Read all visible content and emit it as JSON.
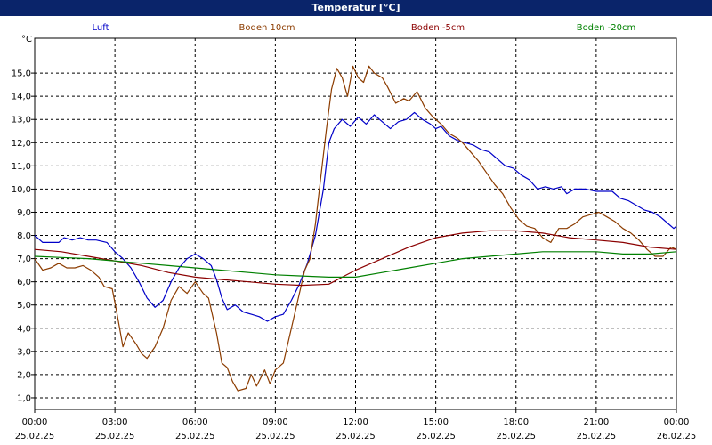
{
  "chart_data": {
    "type": "line",
    "title": "Temperatur [°C]",
    "unit": "°C",
    "ylim": [
      0.5,
      16.5
    ],
    "y_ticks": [
      "1,0",
      "2,0",
      "3,0",
      "4,0",
      "5,0",
      "6,0",
      "7,0",
      "8,0",
      "9,0",
      "10,0",
      "11,0",
      "12,0",
      "13,0",
      "14,0",
      "15,0"
    ],
    "xlim": [
      0,
      24
    ],
    "x_ticks": [
      {
        "time": "00:00",
        "date": "25.02.25"
      },
      {
        "time": "03:00",
        "date": "25.02.25"
      },
      {
        "time": "06:00",
        "date": "25.02.25"
      },
      {
        "time": "09:00",
        "date": "25.02.25"
      },
      {
        "time": "12:00",
        "date": "25.02.25"
      },
      {
        "time": "15:00",
        "date": "25.02.25"
      },
      {
        "time": "18:00",
        "date": "25.02.25"
      },
      {
        "time": "21:00",
        "date": "25.02.25"
      },
      {
        "time": "00:00",
        "date": "26.02.25"
      }
    ],
    "grid": true,
    "legend_position": "top",
    "series": [
      {
        "name": "Luft",
        "color": "#0000c8",
        "points": [
          [
            0,
            8.0
          ],
          [
            0.3,
            7.7
          ],
          [
            0.6,
            7.7
          ],
          [
            0.9,
            7.7
          ],
          [
            1.1,
            7.9
          ],
          [
            1.4,
            7.8
          ],
          [
            1.7,
            7.9
          ],
          [
            2.0,
            7.8
          ],
          [
            2.3,
            7.8
          ],
          [
            2.7,
            7.7
          ],
          [
            3.0,
            7.3
          ],
          [
            3.3,
            7.0
          ],
          [
            3.6,
            6.6
          ],
          [
            3.9,
            6.0
          ],
          [
            4.2,
            5.3
          ],
          [
            4.5,
            4.9
          ],
          [
            4.8,
            5.2
          ],
          [
            5.1,
            6.0
          ],
          [
            5.4,
            6.6
          ],
          [
            5.7,
            7.0
          ],
          [
            6.0,
            7.2
          ],
          [
            6.3,
            7.0
          ],
          [
            6.6,
            6.7
          ],
          [
            6.8,
            6.1
          ],
          [
            7.0,
            5.3
          ],
          [
            7.2,
            4.8
          ],
          [
            7.5,
            5.0
          ],
          [
            7.8,
            4.7
          ],
          [
            8.1,
            4.6
          ],
          [
            8.4,
            4.5
          ],
          [
            8.7,
            4.3
          ],
          [
            9.0,
            4.5
          ],
          [
            9.3,
            4.6
          ],
          [
            9.6,
            5.2
          ],
          [
            9.9,
            5.9
          ],
          [
            10.2,
            6.8
          ],
          [
            10.5,
            8.0
          ],
          [
            10.8,
            10.0
          ],
          [
            11.0,
            12.0
          ],
          [
            11.2,
            12.6
          ],
          [
            11.5,
            13.0
          ],
          [
            11.8,
            12.7
          ],
          [
            12.1,
            13.1
          ],
          [
            12.4,
            12.8
          ],
          [
            12.7,
            13.2
          ],
          [
            13.0,
            12.9
          ],
          [
            13.3,
            12.6
          ],
          [
            13.6,
            12.9
          ],
          [
            13.9,
            13.0
          ],
          [
            14.2,
            13.3
          ],
          [
            14.5,
            13.0
          ],
          [
            14.8,
            12.8
          ],
          [
            15.0,
            12.6
          ],
          [
            15.2,
            12.7
          ],
          [
            15.5,
            12.3
          ],
          [
            15.8,
            12.1
          ],
          [
            16.1,
            12.0
          ],
          [
            16.4,
            11.9
          ],
          [
            16.7,
            11.7
          ],
          [
            17.0,
            11.6
          ],
          [
            17.3,
            11.3
          ],
          [
            17.6,
            11.0
          ],
          [
            17.9,
            10.9
          ],
          [
            18.2,
            10.6
          ],
          [
            18.5,
            10.4
          ],
          [
            18.8,
            10.0
          ],
          [
            19.1,
            10.1
          ],
          [
            19.4,
            10.0
          ],
          [
            19.7,
            10.1
          ],
          [
            19.9,
            9.8
          ],
          [
            20.2,
            10.0
          ],
          [
            20.6,
            10.0
          ],
          [
            21.0,
            9.9
          ],
          [
            21.3,
            9.9
          ],
          [
            21.6,
            9.9
          ],
          [
            21.9,
            9.6
          ],
          [
            22.2,
            9.5
          ],
          [
            22.5,
            9.3
          ],
          [
            22.8,
            9.1
          ],
          [
            23.1,
            9.0
          ],
          [
            23.4,
            8.8
          ],
          [
            23.7,
            8.5
          ],
          [
            23.9,
            8.3
          ],
          [
            24.0,
            8.4
          ]
        ]
      },
      {
        "name": "Boden 10cm",
        "color": "#8c3c00",
        "points": [
          [
            0,
            7.0
          ],
          [
            0.3,
            6.5
          ],
          [
            0.6,
            6.6
          ],
          [
            0.9,
            6.8
          ],
          [
            1.2,
            6.6
          ],
          [
            1.5,
            6.6
          ],
          [
            1.8,
            6.7
          ],
          [
            2.1,
            6.5
          ],
          [
            2.4,
            6.2
          ],
          [
            2.6,
            5.8
          ],
          [
            2.9,
            5.7
          ],
          [
            3.1,
            4.5
          ],
          [
            3.3,
            3.2
          ],
          [
            3.5,
            3.8
          ],
          [
            3.8,
            3.3
          ],
          [
            4.0,
            2.9
          ],
          [
            4.2,
            2.7
          ],
          [
            4.5,
            3.2
          ],
          [
            4.8,
            4.0
          ],
          [
            5.1,
            5.2
          ],
          [
            5.4,
            5.8
          ],
          [
            5.7,
            5.5
          ],
          [
            6.0,
            6.0
          ],
          [
            6.3,
            5.5
          ],
          [
            6.5,
            5.3
          ],
          [
            6.8,
            3.8
          ],
          [
            7.0,
            2.5
          ],
          [
            7.2,
            2.3
          ],
          [
            7.4,
            1.7
          ],
          [
            7.6,
            1.3
          ],
          [
            7.9,
            1.4
          ],
          [
            8.1,
            2.0
          ],
          [
            8.3,
            1.5
          ],
          [
            8.6,
            2.2
          ],
          [
            8.8,
            1.6
          ],
          [
            9.0,
            2.2
          ],
          [
            9.3,
            2.5
          ],
          [
            9.5,
            3.5
          ],
          [
            9.8,
            5.0
          ],
          [
            10.1,
            6.5
          ],
          [
            10.3,
            7.0
          ],
          [
            10.5,
            8.5
          ],
          [
            10.7,
            10.5
          ],
          [
            10.9,
            12.5
          ],
          [
            11.1,
            14.3
          ],
          [
            11.3,
            15.2
          ],
          [
            11.5,
            14.8
          ],
          [
            11.7,
            14.0
          ],
          [
            11.9,
            15.3
          ],
          [
            12.1,
            14.8
          ],
          [
            12.3,
            14.6
          ],
          [
            12.5,
            15.3
          ],
          [
            12.7,
            15.0
          ],
          [
            13.0,
            14.8
          ],
          [
            13.2,
            14.4
          ],
          [
            13.5,
            13.7
          ],
          [
            13.8,
            13.9
          ],
          [
            14.0,
            13.8
          ],
          [
            14.3,
            14.2
          ],
          [
            14.6,
            13.5
          ],
          [
            14.9,
            13.1
          ],
          [
            15.2,
            12.8
          ],
          [
            15.5,
            12.4
          ],
          [
            15.8,
            12.2
          ],
          [
            16.0,
            12.0
          ],
          [
            16.3,
            11.6
          ],
          [
            16.6,
            11.2
          ],
          [
            16.9,
            10.7
          ],
          [
            17.2,
            10.2
          ],
          [
            17.5,
            9.8
          ],
          [
            17.8,
            9.2
          ],
          [
            18.1,
            8.7
          ],
          [
            18.4,
            8.4
          ],
          [
            18.7,
            8.3
          ],
          [
            19.0,
            7.9
          ],
          [
            19.3,
            7.7
          ],
          [
            19.6,
            8.3
          ],
          [
            19.9,
            8.3
          ],
          [
            20.2,
            8.5
          ],
          [
            20.5,
            8.8
          ],
          [
            20.8,
            8.9
          ],
          [
            21.1,
            9.0
          ],
          [
            21.4,
            8.8
          ],
          [
            21.7,
            8.6
          ],
          [
            22.0,
            8.3
          ],
          [
            22.3,
            8.1
          ],
          [
            22.6,
            7.8
          ],
          [
            22.9,
            7.4
          ],
          [
            23.2,
            7.1
          ],
          [
            23.5,
            7.1
          ],
          [
            23.8,
            7.5
          ],
          [
            24.0,
            7.4
          ]
        ]
      },
      {
        "name": "Boden -5cm",
        "color": "#8b0000",
        "points": [
          [
            0,
            7.4
          ],
          [
            1,
            7.3
          ],
          [
            2,
            7.1
          ],
          [
            3,
            6.9
          ],
          [
            4,
            6.7
          ],
          [
            5,
            6.4
          ],
          [
            6,
            6.2
          ],
          [
            7,
            6.1
          ],
          [
            8,
            6.0
          ],
          [
            9,
            5.9
          ],
          [
            10,
            5.85
          ],
          [
            11,
            5.9
          ],
          [
            11.5,
            6.2
          ],
          [
            12,
            6.5
          ],
          [
            13,
            7.0
          ],
          [
            14,
            7.5
          ],
          [
            15,
            7.9
          ],
          [
            16,
            8.1
          ],
          [
            17,
            8.2
          ],
          [
            18,
            8.2
          ],
          [
            19,
            8.1
          ],
          [
            20,
            7.9
          ],
          [
            21,
            7.8
          ],
          [
            22,
            7.7
          ],
          [
            23,
            7.5
          ],
          [
            24,
            7.4
          ]
        ]
      },
      {
        "name": "Boden -20cm",
        "color": "#008000",
        "points": [
          [
            0,
            7.1
          ],
          [
            1,
            7.05
          ],
          [
            2,
            7.0
          ],
          [
            3,
            6.9
          ],
          [
            4,
            6.8
          ],
          [
            5,
            6.7
          ],
          [
            6,
            6.6
          ],
          [
            7,
            6.5
          ],
          [
            8,
            6.4
          ],
          [
            9,
            6.3
          ],
          [
            10,
            6.25
          ],
          [
            11,
            6.2
          ],
          [
            12,
            6.2
          ],
          [
            13,
            6.4
          ],
          [
            14,
            6.6
          ],
          [
            15,
            6.8
          ],
          [
            16,
            7.0
          ],
          [
            17,
            7.1
          ],
          [
            18,
            7.2
          ],
          [
            19,
            7.3
          ],
          [
            20,
            7.3
          ],
          [
            21,
            7.3
          ],
          [
            22,
            7.2
          ],
          [
            23,
            7.2
          ],
          [
            24,
            7.3
          ]
        ]
      }
    ]
  }
}
